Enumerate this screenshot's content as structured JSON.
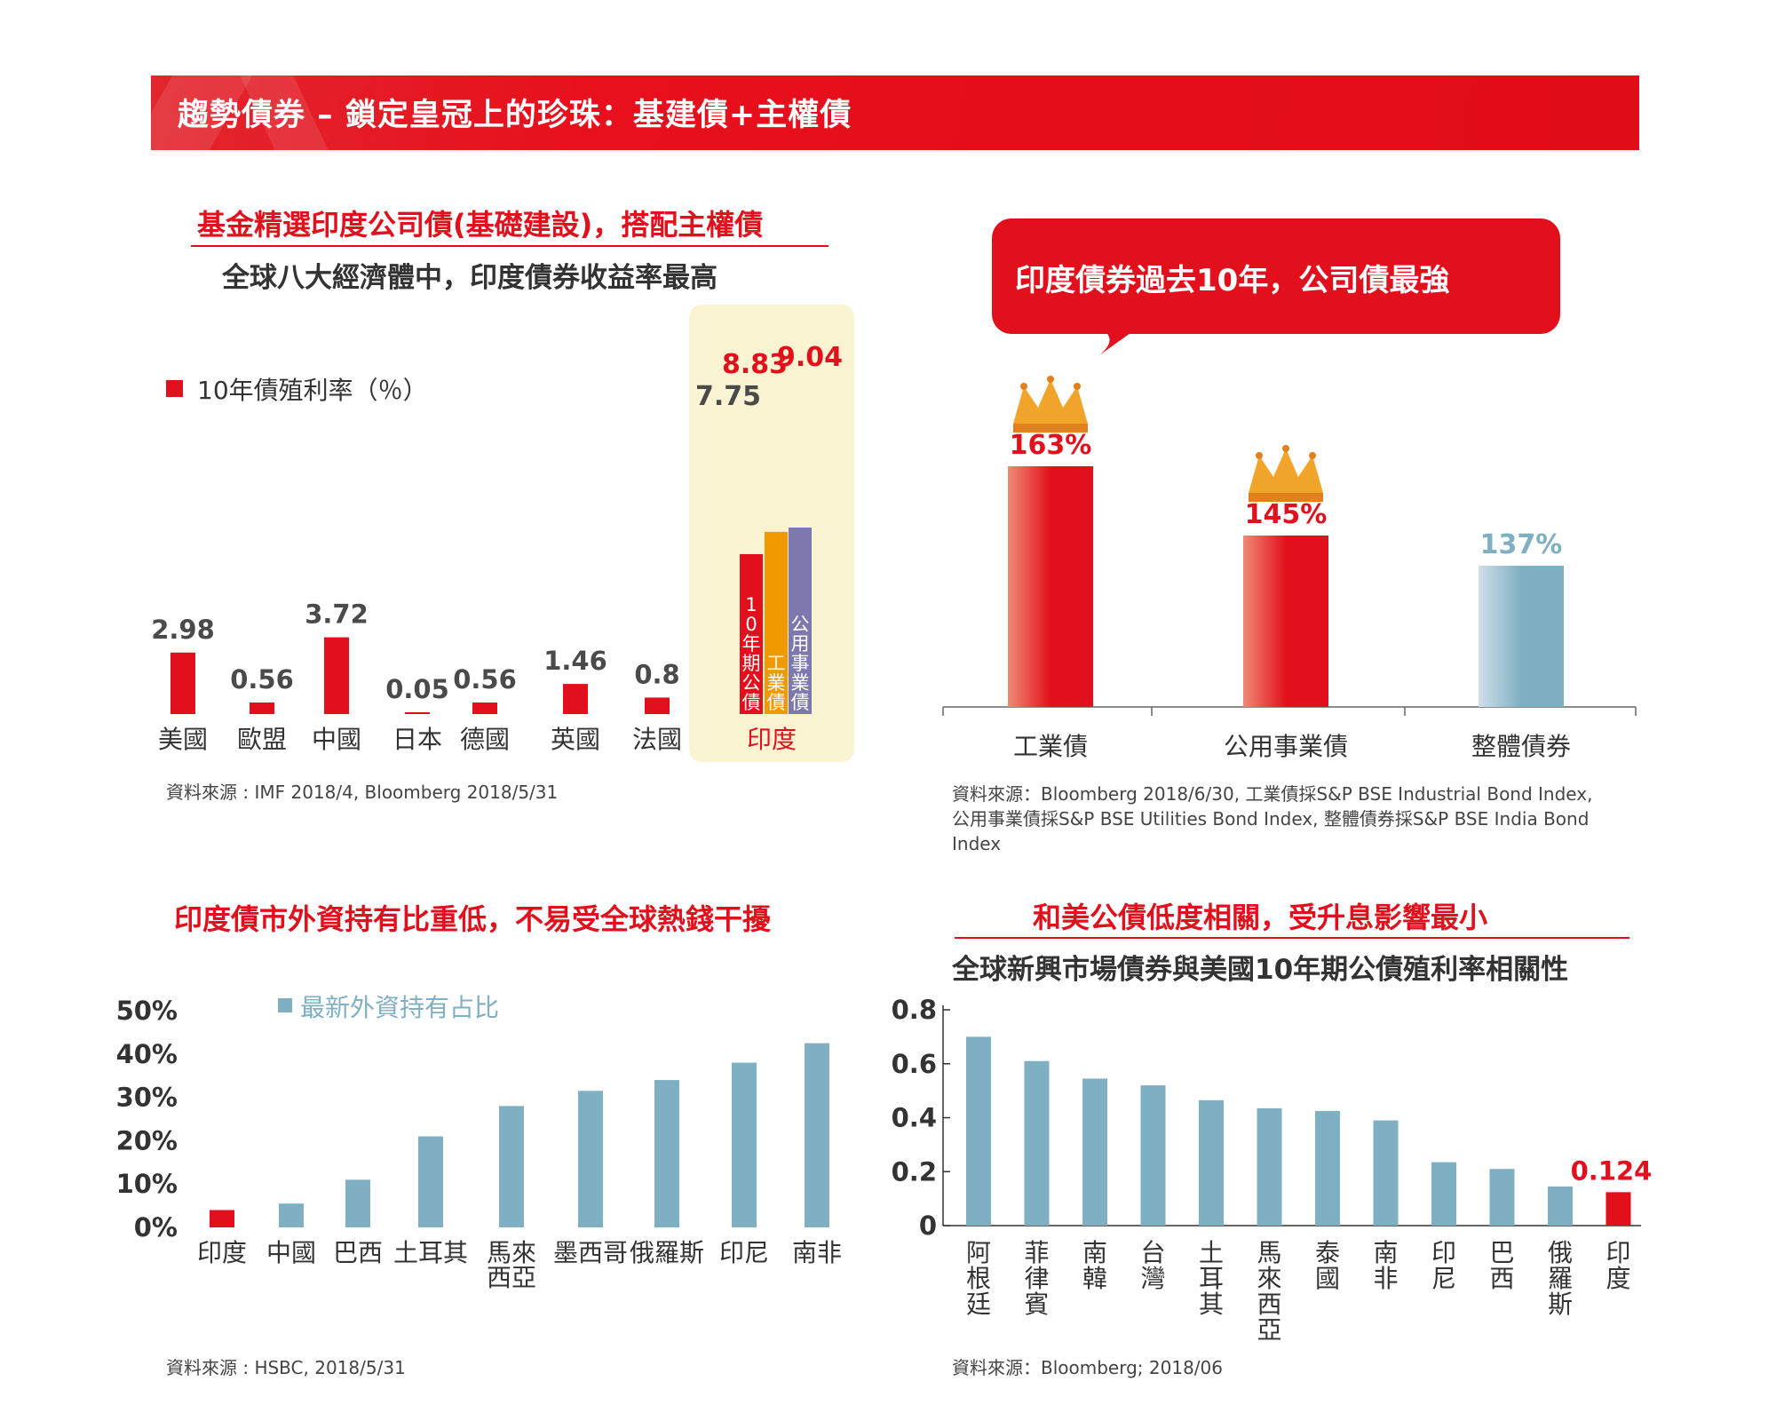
{
  "header": {
    "title": "趨勢債券 – 鎖定皇冠上的珍珠：基建債+主權債"
  },
  "colors": {
    "red": "#e2101c",
    "orange": "#ee9a00",
    "purple": "#7d78ad",
    "blue": "#7fafc3",
    "highlight": "#fbf4d3",
    "gold": "#f0a52a"
  },
  "panel1": {
    "title": "基金精選印度公司債(基礎建設)，搭配主權債",
    "subtitle": "全球八大經濟體中，印度債券收益率最高",
    "legend": "10年債殖利率（％）",
    "source": "資料來源 : IMF 2018/4, Bloomberg 2018/5/31",
    "india_label": "印度"
  },
  "panel2": {
    "bubble": "印度債券過去10年，公司債最強",
    "source_lines": [
      "資料來源：Bloomberg 2018/6/30, 工業債採S&P BSE Industrial Bond Index,",
      "公用事業債採S&P BSE Utilities Bond Index, 整體債券採S&P BSE India Bond",
      "Index"
    ]
  },
  "panel3": {
    "title": "印度債市外資持有比重低，不易受全球熱錢干擾",
    "legend": "最新外資持有占比",
    "source": "資料來源 : HSBC, 2018/5/31"
  },
  "panel4": {
    "title": "和美公債低度相關，受升息影響最小",
    "subtitle": "全球新興市場債券與美國10年期公債殖利率相關性",
    "source": "資料來源：Bloomberg; 2018/06"
  },
  "chart_data": [
    {
      "type": "bar",
      "ylabel": "10年債殖利率（％）",
      "categories": [
        "美國",
        "歐盟",
        "中國",
        "日本",
        "德國",
        "英國",
        "法國"
      ],
      "values": [
        2.98,
        0.56,
        3.72,
        0.05,
        0.56,
        1.46,
        0.8
      ],
      "value_labels": [
        "2.98",
        "0.56",
        "3.72",
        "0.05",
        "0.56",
        "1.46",
        "0.8"
      ],
      "india": {
        "category": "印度",
        "series": [
          {
            "name": "10年期公債",
            "value": 7.75,
            "label": "7.75",
            "color": "#e2101c"
          },
          {
            "name": "工業債",
            "value": 8.83,
            "label": "8.83",
            "color": "#ee9a00"
          },
          {
            "name": "公用事業債",
            "value": 9.04,
            "label": "9.04",
            "color": "#7d78ad"
          }
        ]
      }
    },
    {
      "type": "bar",
      "categories": [
        "工業債",
        "公用事業債",
        "整體債券"
      ],
      "values": [
        163,
        145,
        137
      ],
      "value_labels": [
        "163%",
        "145%",
        "137%"
      ],
      "crowned": [
        "工業債",
        "公用事業債"
      ]
    },
    {
      "type": "bar",
      "legend": "最新外資持有占比",
      "categories": [
        "印度",
        "中國",
        "巴西",
        "土耳其",
        "馬來西亞",
        "墨西哥",
        "俄羅斯",
        "印尼",
        "南非"
      ],
      "category_lines": [
        [
          "印度"
        ],
        [
          "中國"
        ],
        [
          "巴西"
        ],
        [
          "土耳其"
        ],
        [
          "馬來",
          "西亞"
        ],
        [
          "墨西哥"
        ],
        [
          "俄羅斯"
        ],
        [
          "印尼"
        ],
        [
          "南非"
        ]
      ],
      "values": [
        4,
        5.5,
        11,
        21,
        28,
        31.5,
        34,
        38,
        42.5
      ],
      "ylim": [
        0,
        50
      ],
      "yticks": [
        "0%",
        "10%",
        "20%",
        "30%",
        "40%",
        "50%"
      ],
      "highlight": "印度"
    },
    {
      "type": "bar",
      "categories": [
        "阿根廷",
        "菲律賓",
        "南韓",
        "台灣",
        "土耳其",
        "馬來西亞",
        "泰國",
        "南非",
        "印尼",
        "巴西",
        "俄羅斯",
        "印度"
      ],
      "values": [
        0.7,
        0.61,
        0.545,
        0.52,
        0.465,
        0.435,
        0.425,
        0.39,
        0.235,
        0.21,
        0.145,
        0.124
      ],
      "ylim": [
        0,
        0.8
      ],
      "yticks": [
        "0",
        "0.2",
        "0.4",
        "0.6",
        "0.8"
      ],
      "highlight": "印度",
      "highlight_label": "0.124"
    }
  ]
}
